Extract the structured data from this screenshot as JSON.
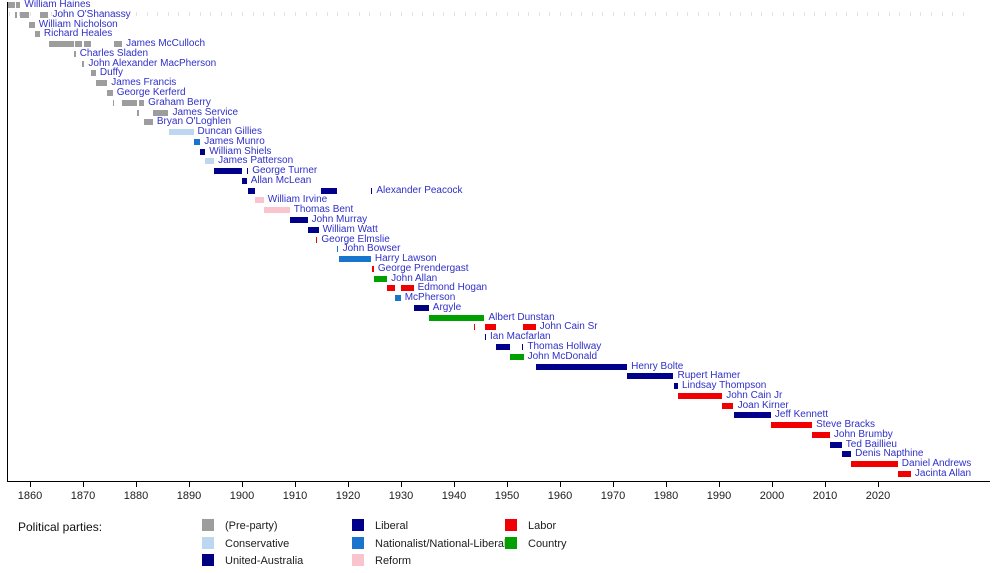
{
  "chart_data": {
    "type": "timeline",
    "description": "Gantt-style timeline of Premiers of Victoria by term, colored by political party",
    "x_axis": {
      "start": 1855.6,
      "end": 2027.5,
      "tick_years": [
        1860,
        1870,
        1880,
        1890,
        1900,
        1910,
        1920,
        1930,
        1940,
        1950,
        1960,
        1970,
        1980,
        1990,
        2000,
        2010,
        2020
      ],
      "grid": false
    },
    "label_color": "#3030c8",
    "axis_text_color": "#1c1c1c",
    "parties": {
      "preparty": {
        "label": "(Pre-party)",
        "color": "#9d9d9d"
      },
      "conservative": {
        "label": "Conservative",
        "color": "#bdd7f0"
      },
      "united_australia": {
        "label": "United-Australia",
        "color": "#000080"
      },
      "liberal": {
        "label": "Liberal",
        "color": "#00008b"
      },
      "nationalist": {
        "label": "Nationalist/National-Liberal",
        "color": "#1874cd"
      },
      "reform": {
        "label": "Reform",
        "color": "#f9c4ce"
      },
      "labor": {
        "label": "Labor",
        "color": "#f00000"
      },
      "country": {
        "label": "Country",
        "color": "#00a000"
      }
    },
    "premiers": [
      {
        "name": "William Haines",
        "party": "preparty",
        "terms": [
          [
            1855.92,
            1857.19
          ],
          [
            1857.33,
            1858.19
          ]
        ]
      },
      {
        "name": "John O'Shanassy",
        "party": "preparty",
        "terms": [
          [
            1857.19,
            1857.33
          ],
          [
            1858.19,
            1859.82
          ],
          [
            1861.87,
            1863.49
          ]
        ]
      },
      {
        "name": "William Nicholson",
        "party": "preparty",
        "terms": [
          [
            1859.82,
            1860.9
          ]
        ]
      },
      {
        "name": "Richard Heales",
        "party": "preparty",
        "terms": [
          [
            1860.9,
            1861.87
          ]
        ]
      },
      {
        "name": "James McCulloch",
        "party": "preparty",
        "terms": [
          [
            1863.49,
            1868.34
          ],
          [
            1868.52,
            1869.72
          ],
          [
            1870.27,
            1871.46
          ],
          [
            1875.8,
            1877.38
          ]
        ]
      },
      {
        "name": "Charles Sladen",
        "party": "preparty",
        "terms": [
          [
            1868.34,
            1868.52
          ]
        ]
      },
      {
        "name": "John Alexander MacPherson",
        "party": "preparty",
        "terms": [
          [
            1869.72,
            1870.27
          ]
        ]
      },
      {
        "name": "Duffy",
        "party": "preparty",
        "terms": [
          [
            1871.46,
            1872.44
          ]
        ]
      },
      {
        "name": "James Francis",
        "party": "preparty",
        "terms": [
          [
            1872.44,
            1874.58
          ]
        ]
      },
      {
        "name": "George Kerferd",
        "party": "preparty",
        "terms": [
          [
            1874.58,
            1875.6
          ]
        ]
      },
      {
        "name": "Graham Berry",
        "party": "preparty",
        "terms": [
          [
            1875.6,
            1875.8
          ],
          [
            1877.38,
            1880.17
          ],
          [
            1880.59,
            1881.52
          ]
        ]
      },
      {
        "name": "James Service",
        "party": "preparty",
        "terms": [
          [
            1880.17,
            1880.59
          ],
          [
            1883.18,
            1886.13
          ]
        ]
      },
      {
        "name": "Bryan O'Loghlen",
        "party": "preparty",
        "terms": [
          [
            1881.52,
            1883.18
          ]
        ]
      },
      {
        "name": "Duncan Gillies",
        "party": "conservative",
        "terms": [
          [
            1886.13,
            1890.84
          ]
        ]
      },
      {
        "name": "James Munro",
        "party": "nationalist",
        "terms": [
          [
            1890.84,
            1892.12
          ]
        ]
      },
      {
        "name": "William Shiels",
        "party": "liberal",
        "terms": [
          [
            1892.12,
            1893.06
          ]
        ]
      },
      {
        "name": "James Patterson",
        "party": "conservative",
        "terms": [
          [
            1893.06,
            1894.74
          ]
        ]
      },
      {
        "name": "George Turner",
        "party": "liberal",
        "terms": [
          [
            1894.74,
            1899.92
          ],
          [
            1900.88,
            1901.12
          ]
        ]
      },
      {
        "name": "Allan McLean",
        "party": "liberal",
        "terms": [
          [
            1899.92,
            1900.88
          ]
        ]
      },
      {
        "name": "Alexander Peacock",
        "party": "liberal",
        "terms": [
          [
            1901.12,
            1902.44
          ],
          [
            1914.94,
            1917.91
          ],
          [
            1924.32,
            1924.55
          ]
        ]
      },
      {
        "name": "William Irvine",
        "party": "reform",
        "terms": [
          [
            1902.44,
            1904.12
          ]
        ]
      },
      {
        "name": "Thomas Bent",
        "party": "reform",
        "terms": [
          [
            1904.12,
            1909.02
          ]
        ]
      },
      {
        "name": "John Murray",
        "party": "liberal",
        "terms": [
          [
            1909.02,
            1912.38
          ]
        ]
      },
      {
        "name": "William Watt",
        "party": "liberal",
        "terms": [
          [
            1912.38,
            1913.94
          ],
          [
            1913.97,
            1914.46
          ]
        ]
      },
      {
        "name": "George Elmslie",
        "party": "labor",
        "terms": [
          [
            1913.94,
            1913.97
          ]
        ]
      },
      {
        "name": "John Bowser",
        "party": "nationalist",
        "terms": [
          [
            1917.91,
            1918.22
          ]
        ]
      },
      {
        "name": "Harry Lawson",
        "party": "nationalist",
        "terms": [
          [
            1918.22,
            1924.32
          ]
        ]
      },
      {
        "name": "George Prendergast",
        "party": "labor",
        "terms": [
          [
            1924.55,
            1924.88
          ]
        ]
      },
      {
        "name": "John Allan",
        "party": "country",
        "terms": [
          [
            1924.88,
            1927.38
          ]
        ]
      },
      {
        "name": "Edmond Hogan",
        "party": "labor",
        "terms": [
          [
            1927.38,
            1928.89
          ],
          [
            1929.94,
            1932.38
          ]
        ]
      },
      {
        "name": "McPherson",
        "party": "nationalist",
        "terms": [
          [
            1928.89,
            1929.94
          ]
        ]
      },
      {
        "name": "Argyle",
        "party": "united_australia",
        "terms": [
          [
            1932.38,
            1935.25
          ]
        ]
      },
      {
        "name": "Albert Dunstan",
        "party": "country",
        "terms": [
          [
            1935.25,
            1943.7
          ],
          [
            1943.72,
            1945.75
          ]
        ]
      },
      {
        "name": "John Cain Sr",
        "party": "labor",
        "terms": [
          [
            1943.7,
            1943.72
          ],
          [
            1945.89,
            1947.89
          ],
          [
            1952.96,
            1955.43
          ]
        ]
      },
      {
        "name": "Ian Macfarlan",
        "party": "liberal",
        "terms": [
          [
            1945.75,
            1945.89
          ]
        ]
      },
      {
        "name": "Thomas Hollway",
        "party": "liberal",
        "terms": [
          [
            1947.89,
            1950.49
          ],
          [
            1952.82,
            1952.84
          ]
        ]
      },
      {
        "name": "John McDonald",
        "party": "country",
        "terms": [
          [
            1950.49,
            1952.82
          ],
          [
            1952.84,
            1952.96
          ]
        ]
      },
      {
        "name": "Henry Bolte",
        "party": "liberal",
        "terms": [
          [
            1955.43,
            1972.66
          ]
        ]
      },
      {
        "name": "Rupert Hamer",
        "party": "liberal",
        "terms": [
          [
            1972.66,
            1981.42
          ]
        ]
      },
      {
        "name": "Lindsay Thompson",
        "party": "liberal",
        "terms": [
          [
            1981.42,
            1982.26
          ]
        ]
      },
      {
        "name": "John Cain Jr",
        "party": "labor",
        "terms": [
          [
            1982.26,
            1990.61
          ]
        ]
      },
      {
        "name": "Joan Kirner",
        "party": "labor",
        "terms": [
          [
            1990.61,
            1992.75
          ]
        ]
      },
      {
        "name": "Jeff Kennett",
        "party": "liberal",
        "terms": [
          [
            1992.75,
            1999.8
          ]
        ]
      },
      {
        "name": "Steve Bracks",
        "party": "labor",
        "terms": [
          [
            1999.8,
            2007.57
          ]
        ]
      },
      {
        "name": "John Brumby",
        "party": "labor",
        "terms": [
          [
            2007.57,
            2010.92
          ]
        ]
      },
      {
        "name": "Ted Baillieu",
        "party": "liberal",
        "terms": [
          [
            2010.92,
            2013.17
          ]
        ]
      },
      {
        "name": "Denis Napthine",
        "party": "liberal",
        "terms": [
          [
            2013.17,
            2014.92
          ]
        ]
      },
      {
        "name": "Daniel Andrews",
        "party": "labor",
        "terms": [
          [
            2014.92,
            2023.74
          ]
        ]
      },
      {
        "name": "Jacinta Allan",
        "party": "labor",
        "terms": [
          [
            2023.74,
            2026.2
          ]
        ]
      }
    ],
    "legend": {
      "title": "Political parties:",
      "position": "bottom",
      "columns": [
        [
          "preparty",
          "conservative",
          "united_australia"
        ],
        [
          "liberal",
          "nationalist",
          "reform"
        ],
        [
          "labor",
          "country"
        ]
      ]
    }
  }
}
